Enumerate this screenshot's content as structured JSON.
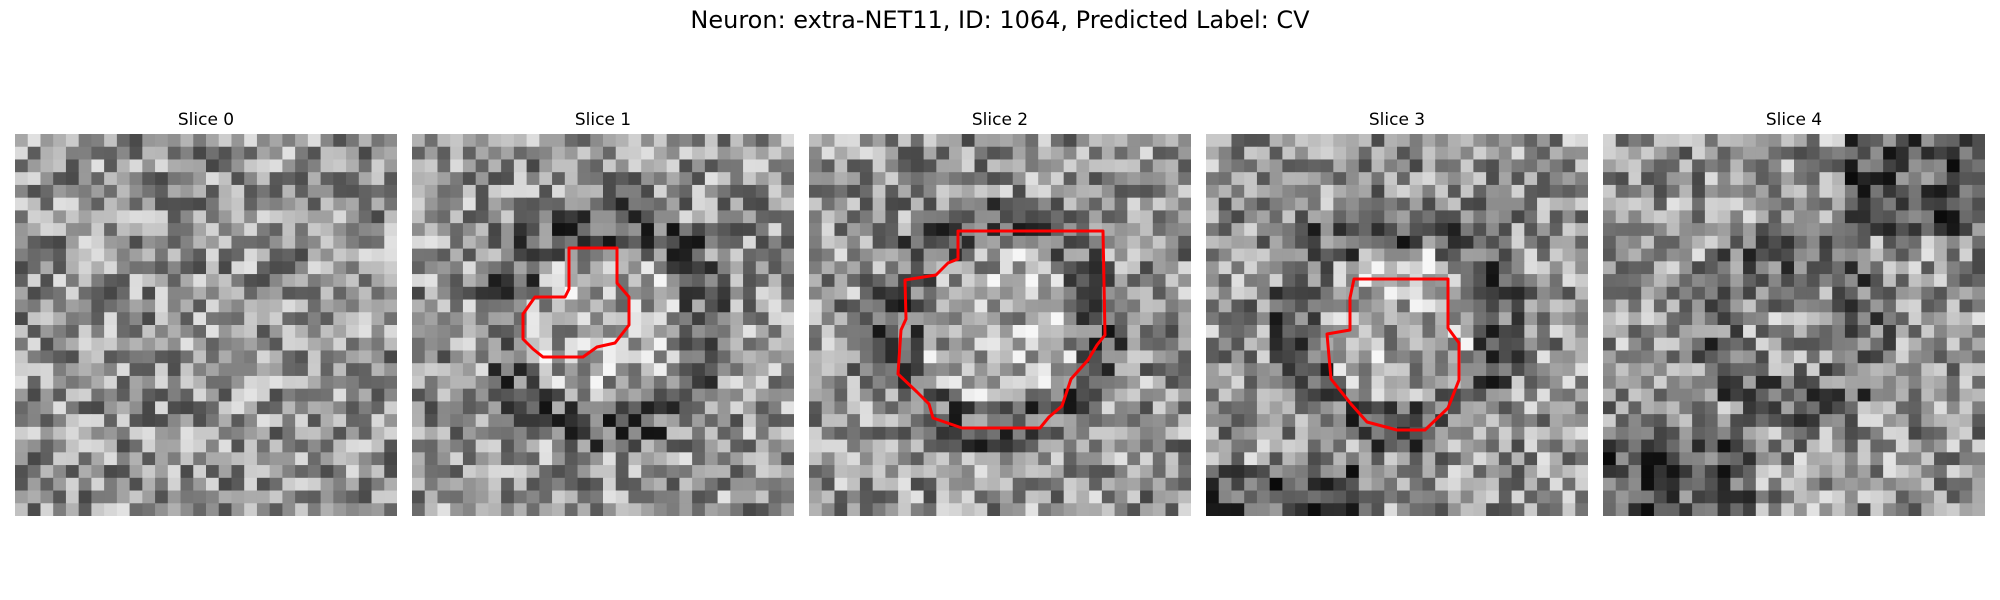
{
  "figure": {
    "title": "Neuron: extra-NET11, ID: 1064, Predicted Label: CV",
    "colors": {
      "contour": "#ff0000"
    },
    "image_grid_size": 30
  },
  "slices": [
    {
      "label": "Slice 0",
      "has_contour": false
    },
    {
      "label": "Slice 1",
      "has_contour": true
    },
    {
      "label": "Slice 2",
      "has_contour": true
    },
    {
      "label": "Slice 3",
      "has_contour": true
    },
    {
      "label": "Slice 4",
      "has_contour": false
    }
  ]
}
